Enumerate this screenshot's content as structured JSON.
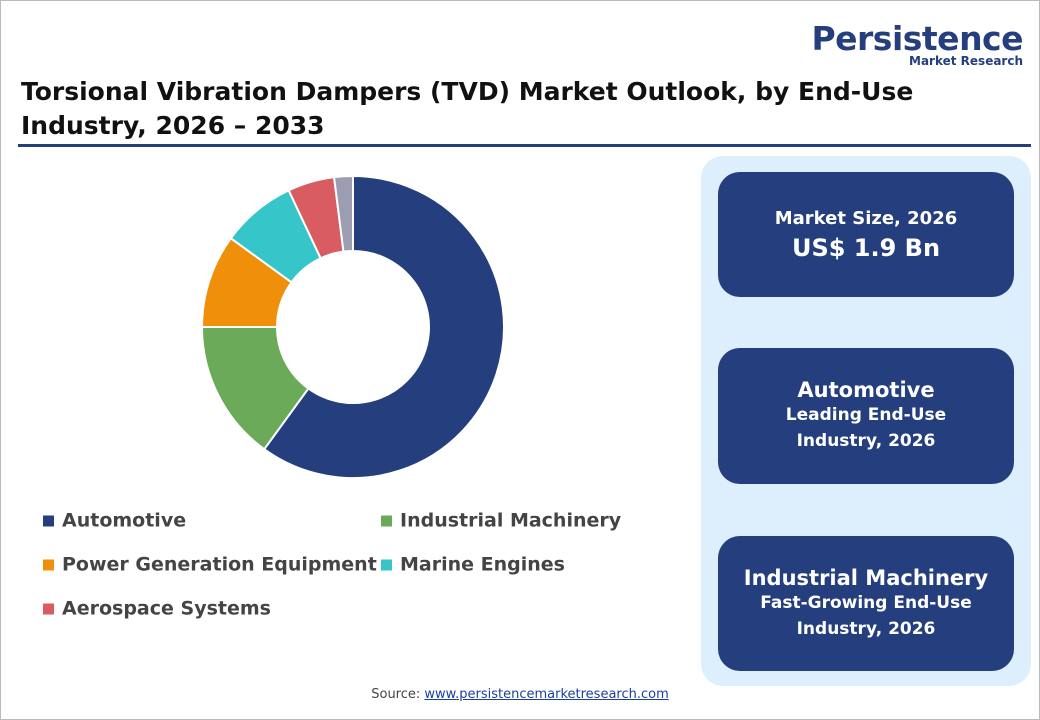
{
  "logo": {
    "name": "Persistence",
    "tagline": "Market Research"
  },
  "chart_data": {
    "type": "donut",
    "title": "Torsional Vibration Dampers (TVD) Market Outlook, by End-Use Industry, 2026 – 2033",
    "categories": [
      "Automotive",
      "Industrial Machinery",
      "Power Generation Equipment",
      "Marine Engines",
      "Aerospace Systems",
      null
    ],
    "values": [
      60,
      15,
      10,
      8,
      5,
      2
    ],
    "colors": [
      "#253f7e",
      "#6aaa58",
      "#f0900a",
      "#36c6c9",
      "#d85c62",
      "#9d9db2"
    ],
    "legend": "bottom"
  },
  "panels": [
    {
      "title": "Market Size, 2026",
      "subtitle": "US$ 1.9 Bn"
    },
    {
      "title": "Automotive",
      "subtitle": "Leading End-Use Industry, 2026"
    },
    {
      "title": "Industrial Machinery",
      "subtitle": "Fast-Growing End-Use Industry, 2026"
    }
  ],
  "source": {
    "label": "Source:",
    "link": "www.persistencemarketresearch.com"
  }
}
